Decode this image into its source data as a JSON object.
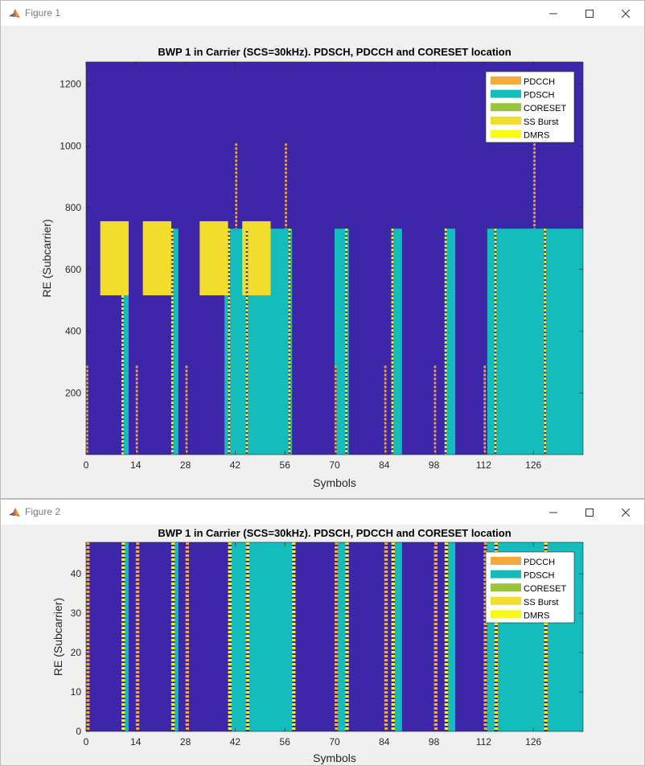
{
  "windows": [
    {
      "title": "Figure 1",
      "chart_data": {
        "type": "heatmap",
        "title": "BWP 1 in Carrier (SCS=30kHz). PDSCH, PDCCH and CORESET location",
        "xlabel": "Symbols",
        "ylabel": "RE (Subcarrier)",
        "xlim": [
          0,
          140
        ],
        "ylim": [
          0,
          1272
        ],
        "xticks": [
          0,
          14,
          28,
          42,
          56,
          70,
          84,
          98,
          112,
          126
        ],
        "yticks": [
          200,
          400,
          600,
          800,
          1000,
          1200
        ],
        "background_color": "#3e26a8",
        "grid": false,
        "legend_position": "top-right",
        "legend": [
          {
            "label": "PDCCH",
            "color": "#f7aa3c"
          },
          {
            "label": "PDSCH",
            "color": "#14bcbc"
          },
          {
            "label": "CORESET",
            "color": "#9bc43c"
          },
          {
            "label": "SS Burst",
            "color": "#f2dc2e"
          },
          {
            "label": "DMRS",
            "color": "#f9f916"
          }
        ],
        "regions": [
          {
            "type": "PDSCH",
            "x": [
              10,
              12
            ],
            "y": [
              0,
              516
            ]
          },
          {
            "type": "PDSCH",
            "x": [
              24,
              26
            ],
            "y": [
              0,
              732
            ]
          },
          {
            "type": "PDSCH",
            "x": [
              39,
              58
            ],
            "y": [
              0,
              732
            ]
          },
          {
            "type": "PDSCH",
            "x": [
              70,
              74
            ],
            "y": [
              0,
              732
            ]
          },
          {
            "type": "PDSCH",
            "x": [
              86,
              89
            ],
            "y": [
              0,
              732
            ]
          },
          {
            "type": "PDSCH",
            "x": [
              101,
              104
            ],
            "y": [
              0,
              732
            ]
          },
          {
            "type": "PDSCH",
            "x": [
              113,
              140
            ],
            "y": [
              0,
              732
            ]
          },
          {
            "type": "SS Burst",
            "x": [
              4,
              12
            ],
            "y": [
              516,
              756
            ]
          },
          {
            "type": "SS Burst",
            "x": [
              16,
              24
            ],
            "y": [
              516,
              756
            ]
          },
          {
            "type": "SS Burst",
            "x": [
              32,
              40
            ],
            "y": [
              516,
              756
            ]
          },
          {
            "type": "SS Burst",
            "x": [
              44,
              52
            ],
            "y": [
              516,
              756
            ]
          },
          {
            "type": "PDCCH",
            "x": [
              0,
              0.6
            ],
            "y": [
              0,
              288
            ]
          },
          {
            "type": "PDCCH",
            "x": [
              14,
              14.6
            ],
            "y": [
              0,
              288
            ]
          },
          {
            "type": "PDCCH",
            "x": [
              28,
              28.6
            ],
            "y": [
              0,
              288
            ]
          },
          {
            "type": "PDCCH",
            "x": [
              70,
              70.6
            ],
            "y": [
              0,
              288
            ]
          },
          {
            "type": "PDCCH",
            "x": [
              84,
              84.6
            ],
            "y": [
              0,
              288
            ]
          },
          {
            "type": "PDCCH",
            "x": [
              98,
              98.6
            ],
            "y": [
              0,
              288
            ]
          },
          {
            "type": "PDCCH",
            "x": [
              112,
              112.6
            ],
            "y": [
              0,
              288
            ]
          },
          {
            "type": "PDCCH",
            "x": [
              42,
              42.6
            ],
            "y": [
              732,
              1008
            ]
          },
          {
            "type": "PDCCH",
            "x": [
              56,
              56.6
            ],
            "y": [
              732,
              1008
            ]
          },
          {
            "type": "PDCCH",
            "x": [
              126,
              126.6
            ],
            "y": [
              732,
              1008
            ]
          },
          {
            "type": "DMRS",
            "x": [
              10,
              10.6
            ],
            "y": [
              0,
              516
            ]
          },
          {
            "type": "DMRS",
            "x": [
              24,
              24.6
            ],
            "y": [
              0,
              732
            ]
          },
          {
            "type": "DMRS",
            "x": [
              40,
              40.6
            ],
            "y": [
              0,
              732
            ]
          },
          {
            "type": "DMRS",
            "x": [
              45,
              45.6
            ],
            "y": [
              0,
              732
            ]
          },
          {
            "type": "DMRS",
            "x": [
              57,
              57.6
            ],
            "y": [
              0,
              732
            ]
          },
          {
            "type": "DMRS",
            "x": [
              73,
              73.6
            ],
            "y": [
              0,
              732
            ]
          },
          {
            "type": "DMRS",
            "x": [
              86,
              86.6
            ],
            "y": [
              0,
              732
            ]
          },
          {
            "type": "DMRS",
            "x": [
              101,
              101.6
            ],
            "y": [
              0,
              732
            ]
          },
          {
            "type": "DMRS",
            "x": [
              115,
              115.6
            ],
            "y": [
              0,
              732
            ]
          },
          {
            "type": "DMRS",
            "x": [
              129,
              129.6
            ],
            "y": [
              0,
              732
            ]
          }
        ]
      }
    },
    {
      "title": "Figure 2",
      "chart_data": {
        "type": "heatmap",
        "title": "BWP 1 in Carrier (SCS=30kHz). PDSCH, PDCCH and CORESET location",
        "xlabel": "Symbols",
        "ylabel": "RE (Subcarrier)",
        "xlim": [
          0,
          140
        ],
        "ylim": [
          0,
          48
        ],
        "xticks": [
          0,
          14,
          28,
          42,
          56,
          70,
          84,
          98,
          112,
          126
        ],
        "yticks": [
          0,
          10,
          20,
          30,
          40
        ],
        "background_color": "#3e26a8",
        "grid": false,
        "legend_position": "top-right",
        "legend": [
          {
            "label": "PDCCH",
            "color": "#f7aa3c"
          },
          {
            "label": "PDSCH",
            "color": "#14bcbc"
          },
          {
            "label": "CORESET",
            "color": "#9bc43c"
          },
          {
            "label": "SS Burst",
            "color": "#f2dc2e"
          },
          {
            "label": "DMRS",
            "color": "#f9f916"
          }
        ],
        "regions": [
          {
            "type": "PDSCH",
            "x": [
              10,
              12
            ],
            "y": [
              0,
              48
            ]
          },
          {
            "type": "PDSCH",
            "x": [
              24,
              26
            ],
            "y": [
              0,
              48
            ]
          },
          {
            "type": "PDSCH",
            "x": [
              40,
              58
            ],
            "y": [
              0,
              48
            ]
          },
          {
            "type": "PDSCH",
            "x": [
              70,
              74
            ],
            "y": [
              0,
              48
            ]
          },
          {
            "type": "PDSCH",
            "x": [
              86,
              89
            ],
            "y": [
              0,
              48
            ]
          },
          {
            "type": "PDSCH",
            "x": [
              101,
              104
            ],
            "y": [
              0,
              48
            ]
          },
          {
            "type": "PDSCH",
            "x": [
              113,
              140
            ],
            "y": [
              0,
              48
            ]
          },
          {
            "type": "PDCCH",
            "x": [
              0,
              1
            ],
            "y": [
              0,
              48
            ]
          },
          {
            "type": "PDCCH",
            "x": [
              14,
              15
            ],
            "y": [
              0,
              48
            ]
          },
          {
            "type": "PDCCH",
            "x": [
              28,
              29
            ],
            "y": [
              0,
              48
            ]
          },
          {
            "type": "PDCCH",
            "x": [
              70,
              71
            ],
            "y": [
              0,
              48
            ]
          },
          {
            "type": "PDCCH",
            "x": [
              84,
              85
            ],
            "y": [
              0,
              48
            ]
          },
          {
            "type": "PDCCH",
            "x": [
              98,
              99
            ],
            "y": [
              0,
              48
            ]
          },
          {
            "type": "PDCCH",
            "x": [
              112,
              113
            ],
            "y": [
              0,
              48
            ]
          },
          {
            "type": "DMRS",
            "x": [
              10,
              11
            ],
            "y": [
              0,
              48
            ]
          },
          {
            "type": "DMRS",
            "x": [
              24,
              25
            ],
            "y": [
              0,
              48
            ]
          },
          {
            "type": "DMRS",
            "x": [
              40,
              41
            ],
            "y": [
              0,
              48
            ]
          },
          {
            "type": "DMRS",
            "x": [
              45,
              46
            ],
            "y": [
              0,
              48
            ]
          },
          {
            "type": "DMRS",
            "x": [
              58,
              59
            ],
            "y": [
              0,
              48
            ]
          },
          {
            "type": "DMRS",
            "x": [
              73,
              74
            ],
            "y": [
              0,
              48
            ]
          },
          {
            "type": "DMRS",
            "x": [
              86,
              87
            ],
            "y": [
              0,
              48
            ]
          },
          {
            "type": "DMRS",
            "x": [
              101,
              102
            ],
            "y": [
              0,
              48
            ]
          },
          {
            "type": "DMRS",
            "x": [
              115,
              116
            ],
            "y": [
              0,
              48
            ]
          },
          {
            "type": "DMRS",
            "x": [
              129,
              130
            ],
            "y": [
              0,
              48
            ]
          }
        ]
      }
    }
  ]
}
